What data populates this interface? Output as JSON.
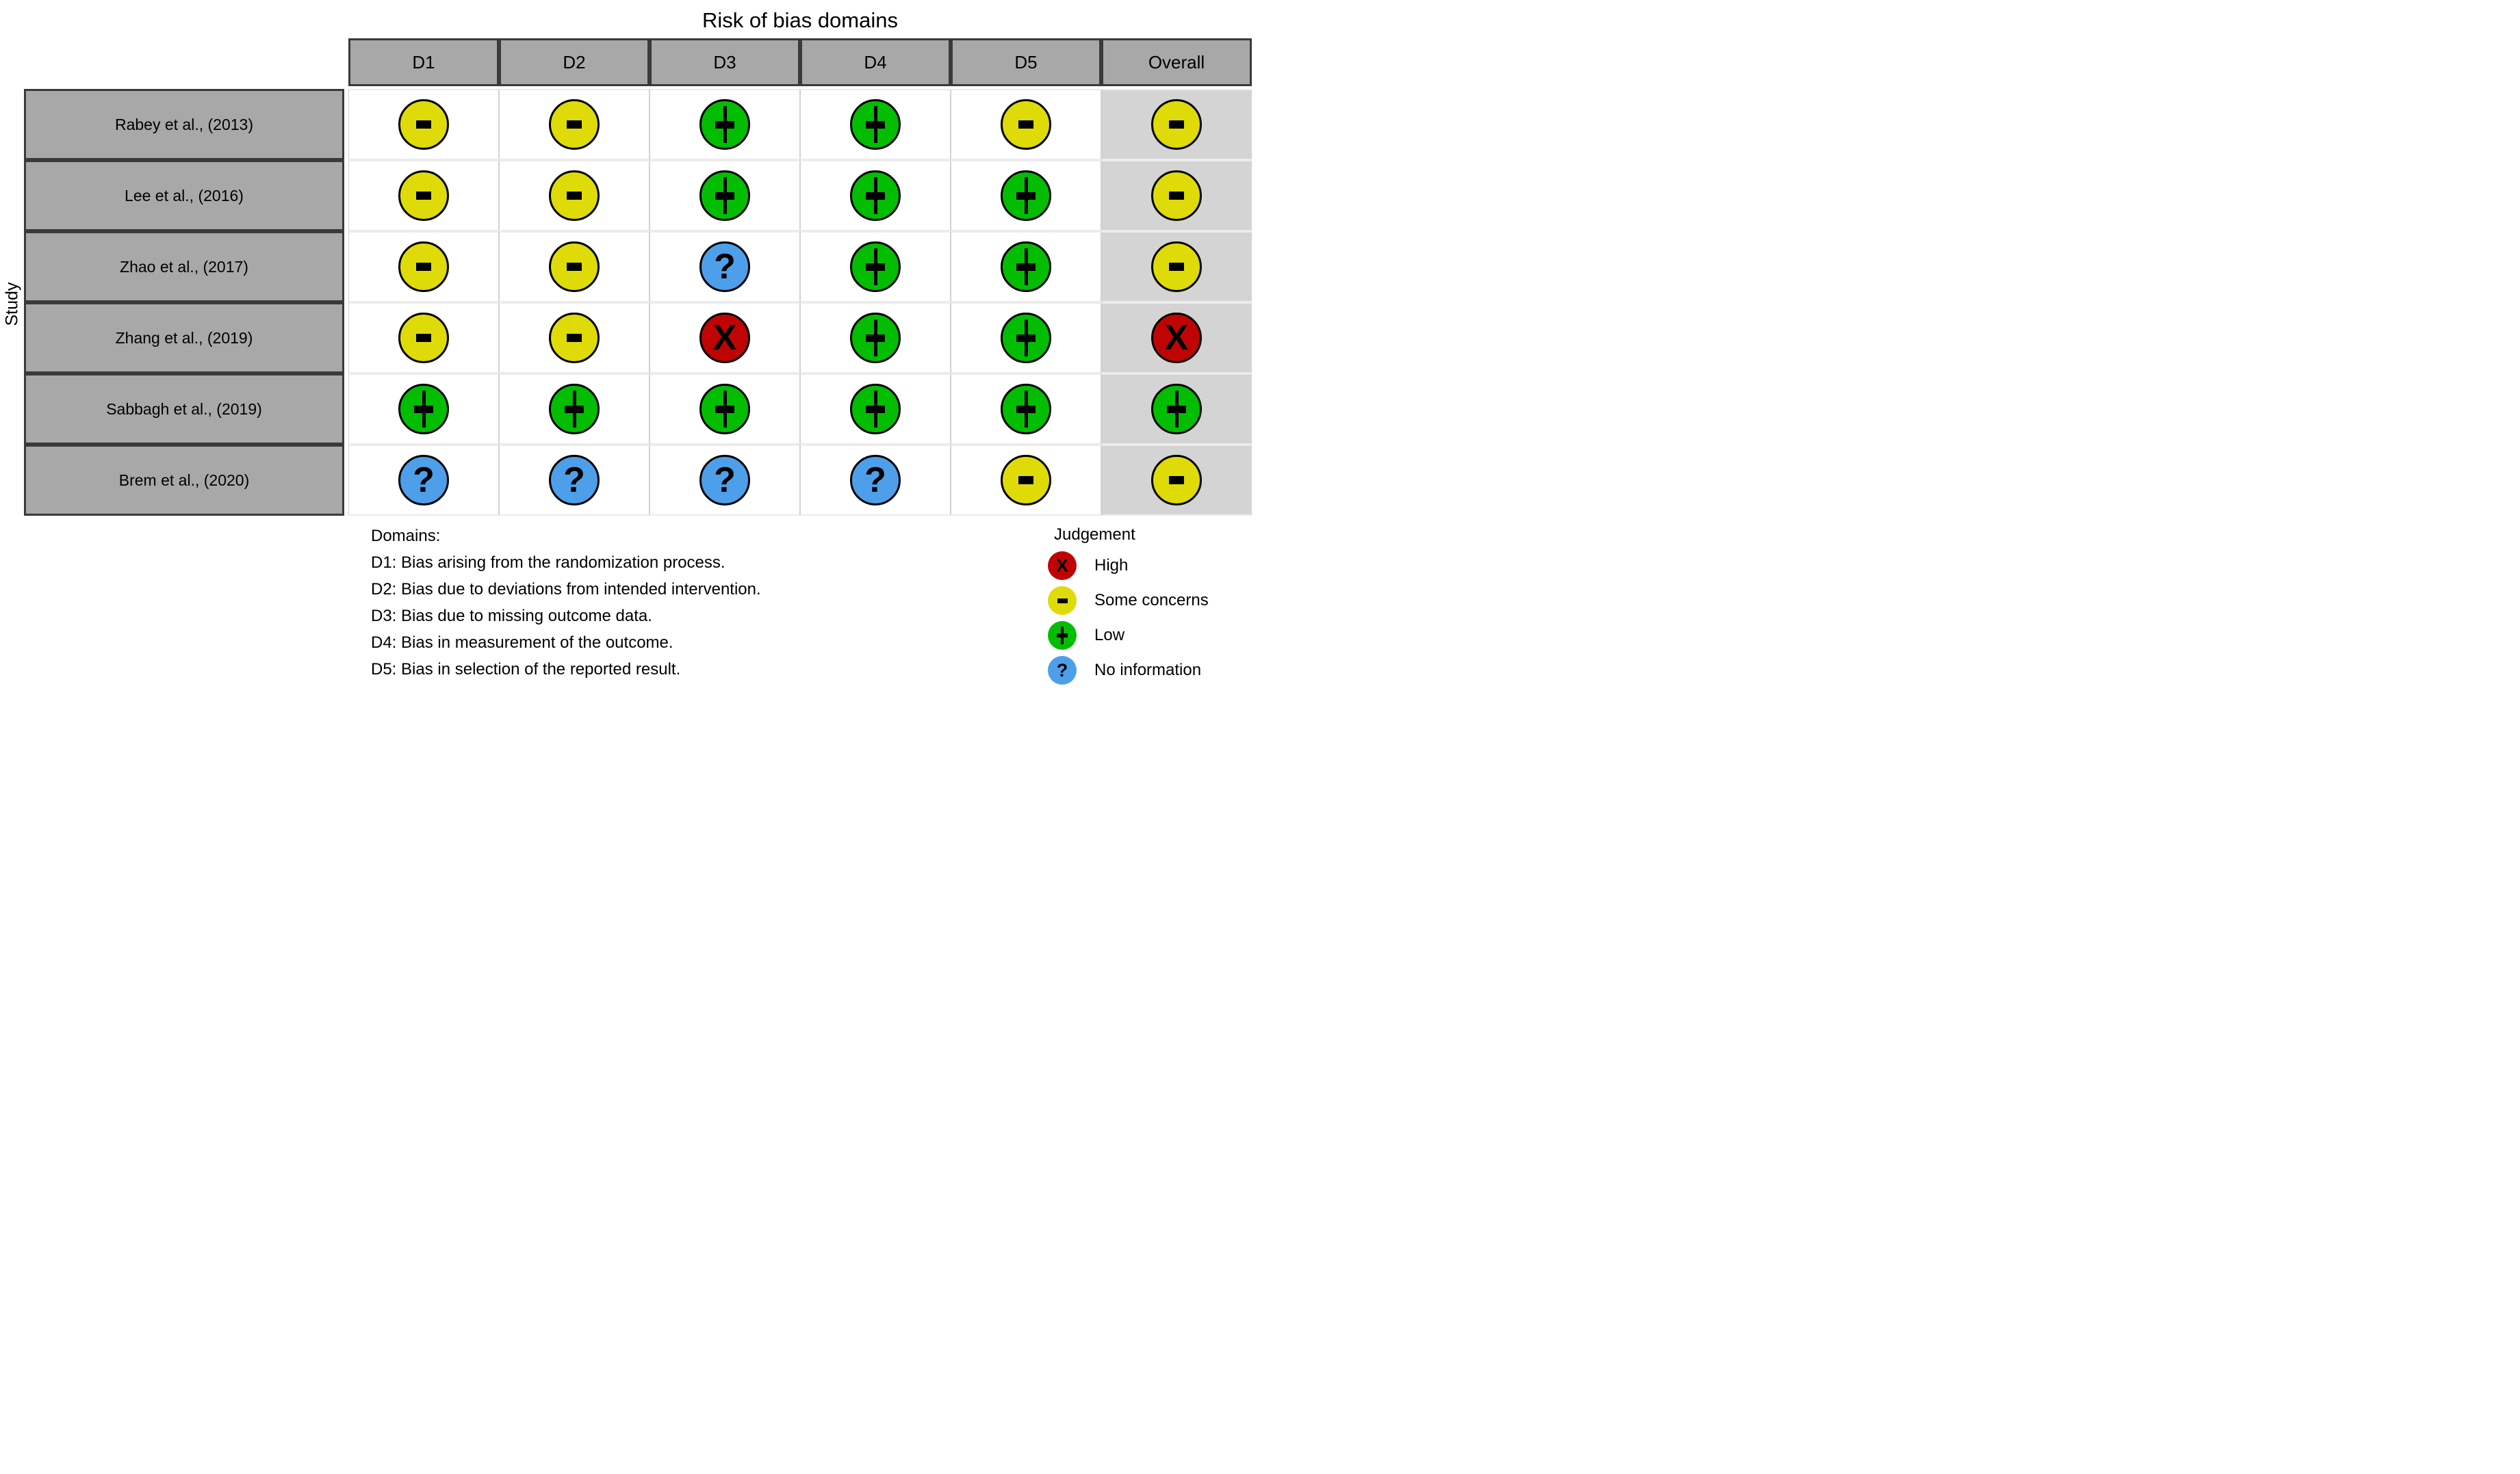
{
  "title": "Risk of bias domains",
  "y_axis_label": "Study",
  "columns": [
    "D1",
    "D2",
    "D3",
    "D4",
    "D5",
    "Overall"
  ],
  "studies": [
    "Rabey et al., (2013)",
    "Lee et al., (2016)",
    "Zhao et al., (2017)",
    "Zhang et al., (2019)",
    "Sabbagh et al., (2019)",
    "Brem et al., (2020)"
  ],
  "matrix": [
    [
      "some",
      "some",
      "low",
      "low",
      "some",
      "some"
    ],
    [
      "some",
      "some",
      "low",
      "low",
      "low",
      "some"
    ],
    [
      "some",
      "some",
      "noinfo",
      "low",
      "low",
      "some"
    ],
    [
      "some",
      "some",
      "high",
      "low",
      "low",
      "high"
    ],
    [
      "low",
      "low",
      "low",
      "low",
      "low",
      "low"
    ],
    [
      "noinfo",
      "noinfo",
      "noinfo",
      "noinfo",
      "some",
      "some"
    ]
  ],
  "judgements": {
    "high": {
      "label": "High",
      "symbol": "X",
      "color": "#BF0404"
    },
    "some": {
      "label": "Some concerns",
      "symbol": "-",
      "color": "#DFDB08"
    },
    "low": {
      "label": "Low",
      "symbol": "+",
      "color": "#02BD02"
    },
    "noinfo": {
      "label": "No information",
      "symbol": "?",
      "color": "#4D9FEA"
    }
  },
  "legend": {
    "title": "Judgement",
    "order": [
      "high",
      "some",
      "low",
      "noinfo"
    ]
  },
  "caption": {
    "heading": "Domains:",
    "lines": [
      "D1: Bias arising from the randomization process.",
      "D2: Bias due to deviations from intended intervention.",
      "D3: Bias due to missing outcome data.",
      "D4: Bias in measurement of the outcome.",
      "D5: Bias in selection of the reported result."
    ]
  },
  "colors": {
    "header_bg": "#A8A8A8",
    "header_border": "#3a3a3a",
    "overall_column_bg": "#D4D4D4",
    "cell_bg": "#ffffff",
    "symbol_color": "#000000"
  },
  "chart_data": {
    "type": "heatmap",
    "title": "Risk of bias domains",
    "x_categories": [
      "D1",
      "D2",
      "D3",
      "D4",
      "D5",
      "Overall"
    ],
    "y_categories": [
      "Rabey et al., (2013)",
      "Lee et al., (2016)",
      "Zhao et al., (2017)",
      "Zhang et al., (2019)",
      "Sabbagh et al., (2019)",
      "Brem et al., (2020)"
    ],
    "y_axis_label": "Study",
    "values": [
      [
        "Some concerns",
        "Some concerns",
        "Low",
        "Low",
        "Some concerns",
        "Some concerns"
      ],
      [
        "Some concerns",
        "Some concerns",
        "Low",
        "Low",
        "Low",
        "Some concerns"
      ],
      [
        "Some concerns",
        "Some concerns",
        "No information",
        "Low",
        "Low",
        "Some concerns"
      ],
      [
        "Some concerns",
        "Some concerns",
        "High",
        "Low",
        "Low",
        "High"
      ],
      [
        "Low",
        "Low",
        "Low",
        "Low",
        "Low",
        "Low"
      ],
      [
        "No information",
        "No information",
        "No information",
        "No information",
        "Some concerns",
        "Some concerns"
      ]
    ],
    "legend_entries": [
      {
        "label": "High",
        "symbol": "X",
        "color": "#BF0404"
      },
      {
        "label": "Some concerns",
        "symbol": "-",
        "color": "#DFDB08"
      },
      {
        "label": "Low",
        "symbol": "+",
        "color": "#02BD02"
      },
      {
        "label": "No information",
        "symbol": "?",
        "color": "#4D9FEA"
      }
    ],
    "legend_position": "bottom-right",
    "grid": false
  }
}
